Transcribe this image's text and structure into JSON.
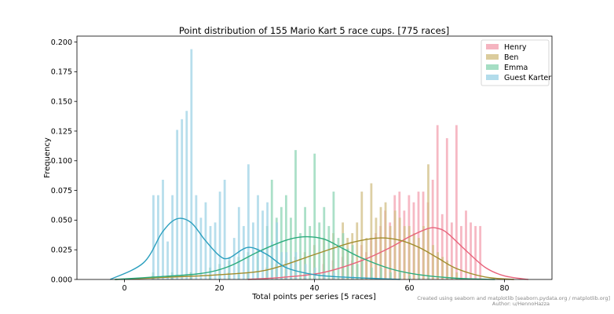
{
  "chart_data": {
    "type": "bar",
    "title": "Point distribution of 155 Mario Kart 5 race cups. [775 races]",
    "xlabel": "Total points per series [5 races]",
    "ylabel": "Frequency",
    "xlim": [
      -10,
      90
    ],
    "ylim": [
      0,
      0.205
    ],
    "xticks": [
      0,
      20,
      40,
      60,
      80
    ],
    "yticks": [
      0.0,
      0.025,
      0.05,
      0.075,
      0.1,
      0.125,
      0.15,
      0.175,
      0.2
    ],
    "legend_position": "top-right",
    "series": [
      {
        "name": "Henry",
        "color": "#f3a1b0",
        "kde_color": "#e8637b",
        "x": [
          34,
          38,
          42,
          44,
          46,
          48,
          50,
          51,
          52,
          53,
          54,
          55,
          56,
          57,
          58,
          59,
          60,
          61,
          62,
          63,
          64,
          65,
          66,
          67,
          68,
          69,
          70,
          71,
          72,
          73,
          74,
          75
        ],
        "values": [
          0.003,
          0.006,
          0.013,
          0.016,
          0.019,
          0.016,
          0.029,
          0.023,
          0.035,
          0.039,
          0.045,
          0.058,
          0.048,
          0.071,
          0.074,
          0.058,
          0.071,
          0.065,
          0.074,
          0.074,
          0.065,
          0.084,
          0.13,
          0.055,
          0.119,
          0.048,
          0.13,
          0.045,
          0.058,
          0.048,
          0.045,
          0.045
        ]
      },
      {
        "name": "Ben",
        "color": "#d2bf85",
        "kde_color": "#a08c2b",
        "x": [
          6,
          10,
          14,
          18,
          22,
          26,
          30,
          32,
          34,
          36,
          38,
          40,
          42,
          44,
          46,
          47,
          48,
          49,
          50,
          51,
          52,
          53,
          54,
          55,
          56,
          57,
          58,
          59,
          60,
          61,
          62,
          63,
          64,
          65,
          66,
          67,
          68,
          69,
          70
        ],
        "values": [
          0.003,
          0.003,
          0.006,
          0.003,
          0.006,
          0.006,
          0.01,
          0.013,
          0.016,
          0.019,
          0.023,
          0.029,
          0.035,
          0.039,
          0.048,
          0.035,
          0.039,
          0.048,
          0.074,
          0.035,
          0.081,
          0.052,
          0.061,
          0.065,
          0.045,
          0.058,
          0.052,
          0.045,
          0.045,
          0.039,
          0.035,
          0.045,
          0.097,
          0.029,
          0.023,
          0.019,
          0.016,
          0.01,
          0.006
        ]
      },
      {
        "name": "Emma",
        "color": "#8fd6b5",
        "kde_color": "#2bab7d",
        "x": [
          6,
          10,
          14,
          18,
          20,
          22,
          24,
          26,
          28,
          30,
          31,
          32,
          33,
          34,
          35,
          36,
          37,
          38,
          39,
          40,
          41,
          42,
          43,
          44,
          45,
          46,
          47,
          48,
          49,
          50,
          52,
          54,
          56,
          58,
          60,
          62,
          64
        ],
        "values": [
          0.006,
          0.006,
          0.006,
          0.01,
          0.013,
          0.016,
          0.019,
          0.023,
          0.026,
          0.045,
          0.084,
          0.052,
          0.061,
          0.071,
          0.052,
          0.109,
          0.039,
          0.061,
          0.045,
          0.106,
          0.048,
          0.061,
          0.045,
          0.074,
          0.035,
          0.039,
          0.026,
          0.029,
          0.013,
          0.016,
          0.01,
          0.01,
          0.006,
          0.006,
          0.003,
          0.003,
          0.003
        ]
      },
      {
        "name": "Guest Karter",
        "color": "#9fd3e6",
        "kde_color": "#2a9fbe",
        "x": [
          6,
          7,
          8,
          9,
          10,
          11,
          12,
          13,
          14,
          15,
          16,
          17,
          18,
          19,
          20,
          21,
          22,
          23,
          24,
          25,
          26,
          27,
          28,
          29,
          30,
          31,
          32,
          33,
          34,
          35,
          36,
          38,
          40,
          42,
          44,
          46,
          48
        ],
        "values": [
          0.071,
          0.071,
          0.084,
          0.032,
          0.071,
          0.126,
          0.135,
          0.142,
          0.194,
          0.071,
          0.052,
          0.065,
          0.045,
          0.048,
          0.074,
          0.084,
          0.019,
          0.035,
          0.061,
          0.045,
          0.097,
          0.048,
          0.071,
          0.058,
          0.065,
          0.032,
          0.048,
          0.023,
          0.023,
          0.016,
          0.023,
          0.013,
          0.01,
          0.006,
          0.006,
          0.003,
          0.003
        ]
      }
    ],
    "kde": [
      {
        "name": "Henry",
        "x": [
          26,
          34,
          42,
          50,
          56,
          60,
          64,
          66,
          68,
          72,
          76,
          80,
          85
        ],
        "y": [
          0.0,
          0.002,
          0.006,
          0.016,
          0.027,
          0.036,
          0.043,
          0.043,
          0.039,
          0.024,
          0.01,
          0.003,
          0.0
        ]
      },
      {
        "name": "Ben",
        "x": [
          -2,
          10,
          20,
          30,
          40,
          46,
          50,
          54,
          58,
          62,
          66,
          70,
          76,
          82
        ],
        "y": [
          0.0,
          0.002,
          0.004,
          0.008,
          0.021,
          0.029,
          0.033,
          0.035,
          0.033,
          0.027,
          0.018,
          0.009,
          0.002,
          0.0
        ]
      },
      {
        "name": "Emma",
        "x": [
          -2,
          6,
          16,
          22,
          28,
          34,
          38,
          42,
          46,
          50,
          56,
          62,
          70,
          78
        ],
        "y": [
          0.0,
          0.002,
          0.005,
          0.011,
          0.023,
          0.033,
          0.036,
          0.034,
          0.026,
          0.018,
          0.009,
          0.004,
          0.001,
          0.0
        ]
      },
      {
        "name": "Guest Karter",
        "x": [
          -3,
          4,
          8,
          11,
          14,
          17,
          20,
          22,
          26,
          30,
          34,
          40,
          46,
          52,
          58
        ],
        "y": [
          0.0,
          0.014,
          0.04,
          0.051,
          0.048,
          0.033,
          0.02,
          0.018,
          0.027,
          0.021,
          0.01,
          0.004,
          0.002,
          0.001,
          0.0
        ]
      }
    ]
  },
  "footer": {
    "credit_line1": "Created using seaborn and matplotlib [seaborn.pydata.org / matplotlib.org]",
    "credit_line2": "Author: u/HennoHazza"
  }
}
